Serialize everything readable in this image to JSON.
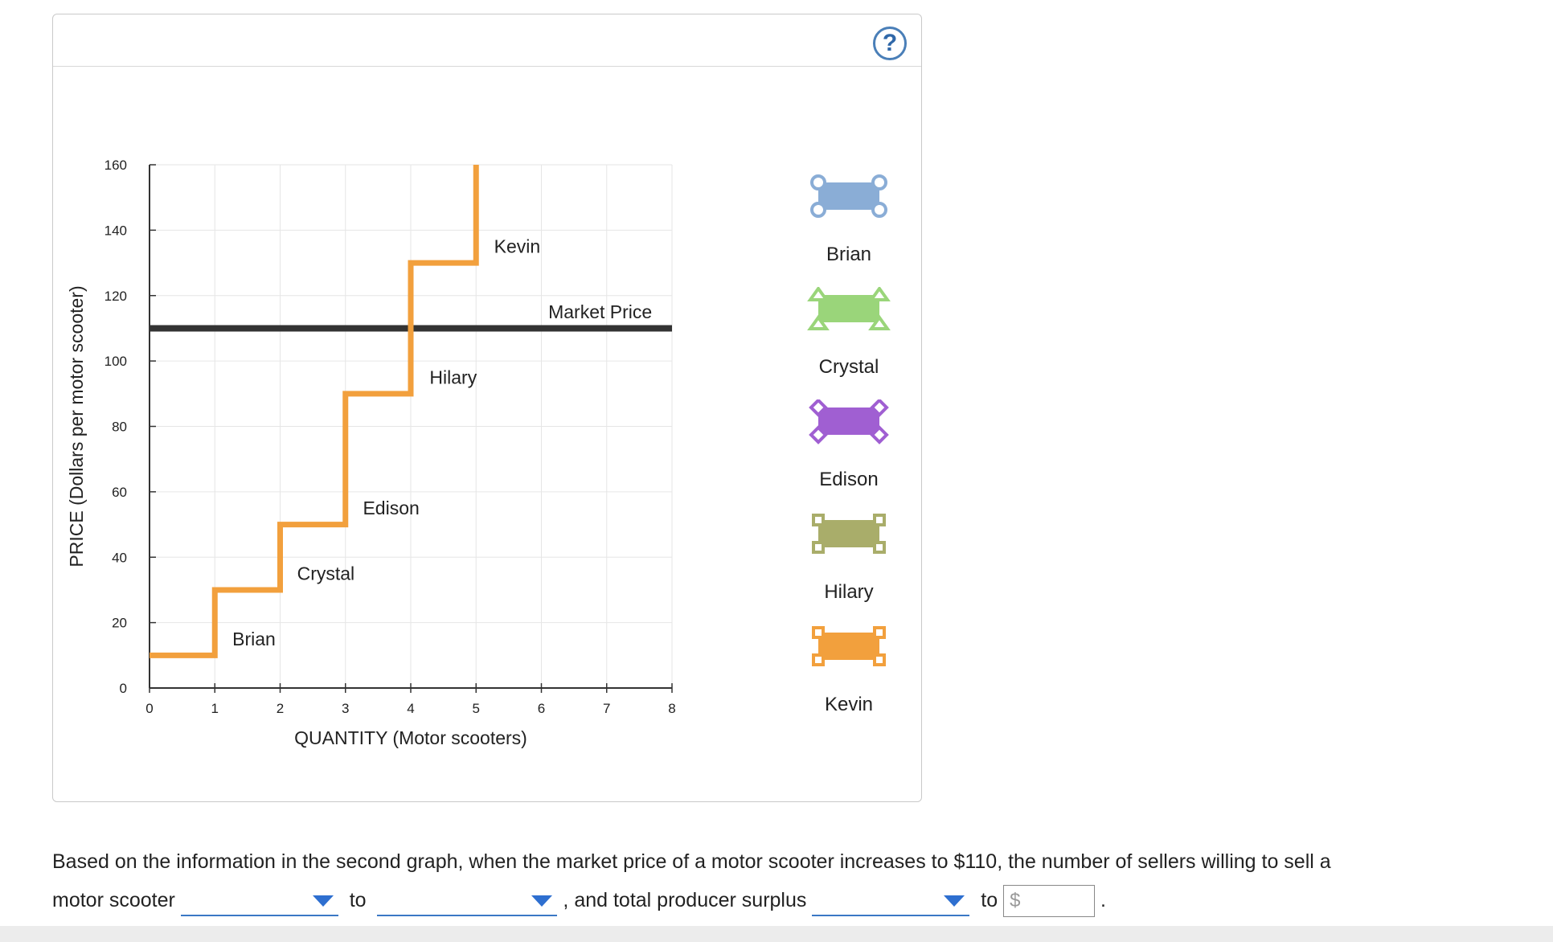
{
  "help": {
    "icon": "question-circle-icon",
    "label": "?"
  },
  "chart_data": {
    "type": "line",
    "xlabel": "QUANTITY (Motor scooters)",
    "ylabel": "PRICE (Dollars per motor scooter)",
    "xlim": [
      0,
      8
    ],
    "ylim": [
      0,
      160
    ],
    "xticks": [
      0,
      1,
      2,
      3,
      4,
      5,
      6,
      7,
      8
    ],
    "yticks": [
      0,
      20,
      40,
      60,
      80,
      100,
      120,
      140,
      160
    ],
    "grid": true,
    "supply_curve": {
      "color": "#f2a03d",
      "points": [
        [
          0,
          10
        ],
        [
          1,
          10
        ],
        [
          1,
          30
        ],
        [
          2,
          30
        ],
        [
          2,
          50
        ],
        [
          3,
          50
        ],
        [
          3,
          90
        ],
        [
          4,
          90
        ],
        [
          4,
          130
        ],
        [
          5,
          130
        ],
        [
          5,
          160
        ]
      ]
    },
    "market_price": {
      "label": "Market Price",
      "value": 110,
      "color": "#333333"
    },
    "step_labels": [
      {
        "text": "Brian",
        "x": 1.6,
        "y": 15
      },
      {
        "text": "Crystal",
        "x": 2.7,
        "y": 35
      },
      {
        "text": "Edison",
        "x": 3.7,
        "y": 55
      },
      {
        "text": "Hilary",
        "x": 4.65,
        "y": 95
      },
      {
        "text": "Kevin",
        "x": 5.63,
        "y": 135
      },
      {
        "text": "Market Price",
        "x": 6.9,
        "y": 115
      }
    ]
  },
  "tools": [
    {
      "name": "Brian",
      "color": "#8aadd6",
      "marker": "circle"
    },
    {
      "name": "Crystal",
      "color": "#9ad57a",
      "marker": "triangle"
    },
    {
      "name": "Edison",
      "color": "#a05fd2",
      "marker": "diamond"
    },
    {
      "name": "Hilary",
      "color": "#a9ad6a",
      "marker": "square"
    },
    {
      "name": "Kevin",
      "color": "#f2a03d",
      "marker": "square"
    }
  ],
  "question": {
    "text1": "Based on the information in the second graph, when the market price of a motor scooter increases to $110, the number of sellers willing to sell a",
    "text2": "motor scooter",
    "to1": "to",
    "text3": ", and total producer surplus",
    "to2": "to",
    "dollar_sign": "$",
    "period": "."
  }
}
